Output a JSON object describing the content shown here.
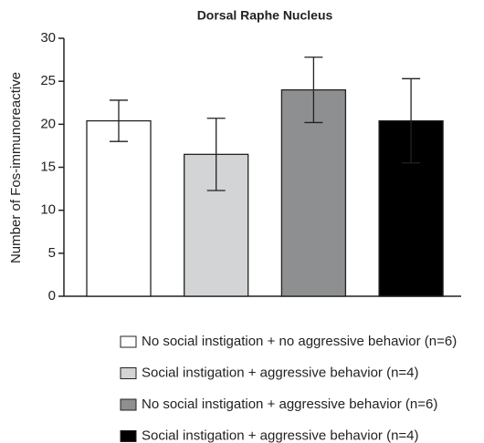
{
  "chart_data": {
    "type": "bar",
    "title": "Dorsal Raphe Nucleus",
    "ylabel": "Number of Fos-immunoreactive",
    "ylim": [
      0,
      30
    ],
    "yticks": [
      0,
      5,
      10,
      15,
      20,
      25,
      30
    ],
    "series": [
      {
        "name": "No social instigation + no aggressive behavior (n=6)",
        "color": "#ffffff",
        "values": [
          20.4
        ],
        "errors": [
          2.4
        ]
      },
      {
        "name": "Social instigation + aggressive behavior (n=4)",
        "color": "#d3d4d6",
        "values": [
          16.5
        ],
        "errors": [
          4.2
        ]
      },
      {
        "name": "No social instigation + aggressive behavior (n=6)",
        "color": "#8e8f91",
        "values": [
          24
        ],
        "errors": [
          3.8
        ]
      },
      {
        "name": "Social instigation + aggressive behavior (n=4)",
        "color": "#000000",
        "values": [
          20.4
        ],
        "errors": [
          4.9
        ]
      }
    ]
  }
}
